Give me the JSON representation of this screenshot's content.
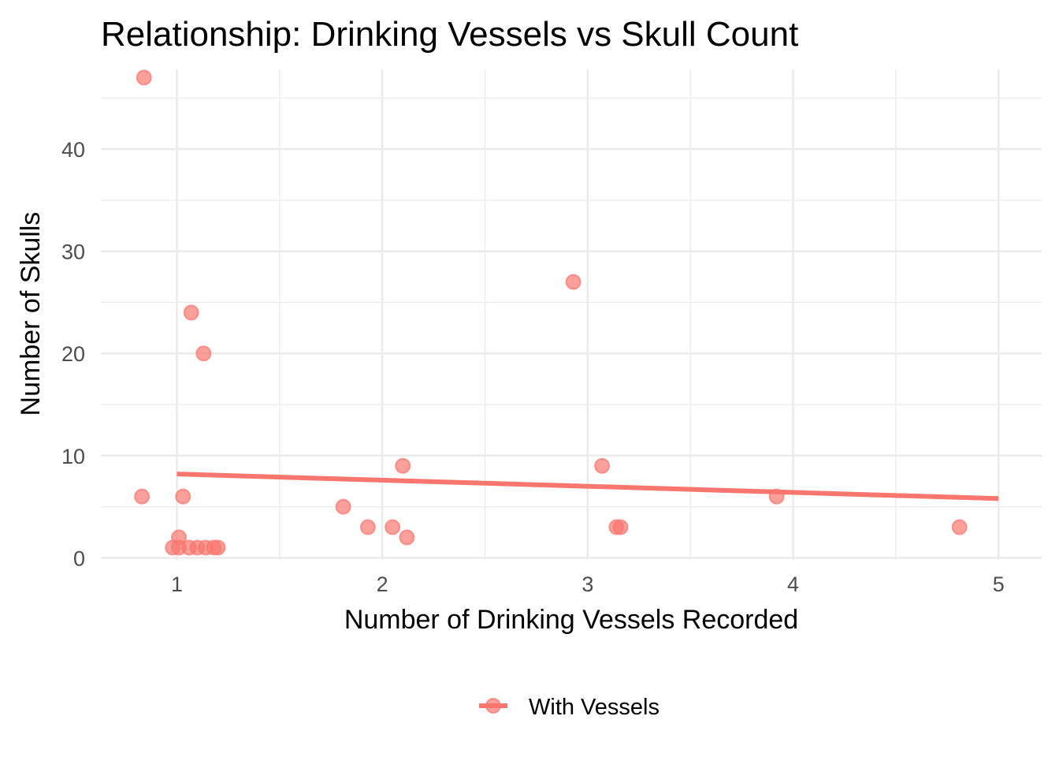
{
  "chart_data": {
    "type": "scatter",
    "title": "Relationship: Drinking Vessels vs Skull Count",
    "xlabel": "Number of Drinking Vessels Recorded",
    "ylabel": "Number of Skulls",
    "xlim": [
      0.63,
      5.21
    ],
    "ylim": [
      -0.2,
      47.8
    ],
    "x_ticks": [
      1,
      2,
      3,
      4,
      5
    ],
    "y_ticks": [
      0,
      10,
      20,
      30,
      40
    ],
    "x_tick_labels": [
      "1",
      "2",
      "3",
      "4",
      "5"
    ],
    "y_tick_labels": [
      "0",
      "10",
      "20",
      "30",
      "40"
    ],
    "grid": true,
    "legend_position": "bottom",
    "series": [
      {
        "name": "With Vessels",
        "color": "#F8766D",
        "points": [
          {
            "x": 0.84,
            "y": 47
          },
          {
            "x": 0.83,
            "y": 6
          },
          {
            "x": 1.03,
            "y": 6
          },
          {
            "x": 1.07,
            "y": 24
          },
          {
            "x": 1.13,
            "y": 20
          },
          {
            "x": 1.01,
            "y": 2
          },
          {
            "x": 0.98,
            "y": 1
          },
          {
            "x": 1.01,
            "y": 1
          },
          {
            "x": 1.06,
            "y": 1
          },
          {
            "x": 1.1,
            "y": 1
          },
          {
            "x": 1.14,
            "y": 1
          },
          {
            "x": 1.18,
            "y": 1
          },
          {
            "x": 1.2,
            "y": 1
          },
          {
            "x": 1.81,
            "y": 5
          },
          {
            "x": 1.93,
            "y": 3
          },
          {
            "x": 2.05,
            "y": 3
          },
          {
            "x": 2.1,
            "y": 9
          },
          {
            "x": 2.12,
            "y": 2
          },
          {
            "x": 2.93,
            "y": 27
          },
          {
            "x": 3.07,
            "y": 9
          },
          {
            "x": 3.14,
            "y": 3
          },
          {
            "x": 3.16,
            "y": 3
          },
          {
            "x": 3.92,
            "y": 6
          },
          {
            "x": 4.81,
            "y": 3
          }
        ],
        "trend_line": {
          "x": [
            1,
            5
          ],
          "y": [
            8.2,
            5.8
          ]
        }
      }
    ]
  }
}
